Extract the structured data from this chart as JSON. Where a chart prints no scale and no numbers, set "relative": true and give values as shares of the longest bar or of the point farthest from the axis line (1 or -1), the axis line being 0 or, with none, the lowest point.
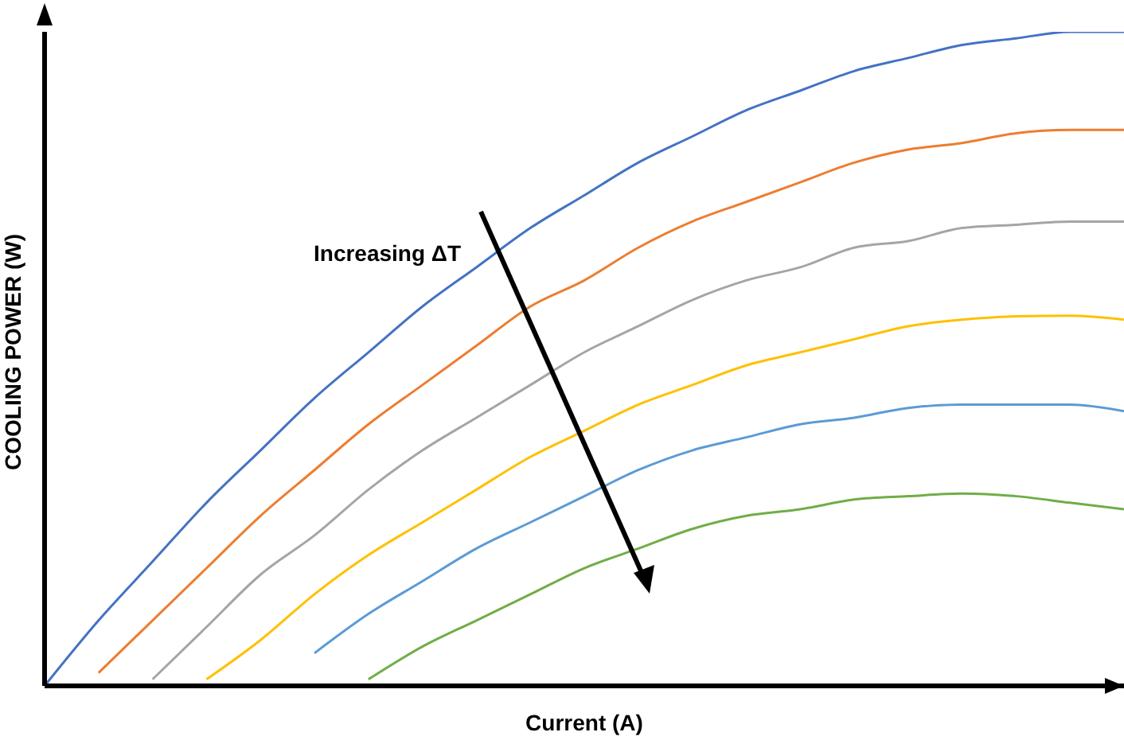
{
  "chart_data": {
    "type": "line",
    "relative": true,
    "xlabel": "Current (A)",
    "ylabel": "COOLING POWER (W)",
    "annotations": [
      "Increasing ΔT"
    ],
    "categories": [
      null,
      null,
      null,
      null,
      null,
      null,
      null,
      null,
      null,
      null,
      null,
      null,
      null,
      null,
      null,
      null,
      null,
      null,
      null,
      null,
      null
    ],
    "grid": false,
    "marker": "none",
    "line_style": "solid",
    "series": [
      {
        "color": "#4472c4",
        "values": [
          0,
          0.1,
          0.19,
          0.28,
          0.36,
          0.44,
          0.51,
          0.58,
          0.64,
          0.7,
          0.75,
          0.8,
          0.84,
          0.88,
          0.91,
          0.94,
          0.96,
          0.98,
          0.99,
          1,
          1
        ]
      },
      {
        "color": "#ed7d31",
        "values": [
          null,
          0.02,
          0.1,
          0.18,
          0.26,
          0.33,
          0.4,
          0.46,
          0.52,
          0.58,
          0.62,
          0.67,
          0.71,
          0.74,
          0.77,
          0.8,
          0.82,
          0.83,
          0.845,
          0.85,
          0.85
        ]
      },
      {
        "color": "#a5a5a5",
        "values": [
          null,
          null,
          0.01,
          0.09,
          0.17,
          0.23,
          0.3,
          0.36,
          0.41,
          0.46,
          0.51,
          0.55,
          0.59,
          0.62,
          0.64,
          0.67,
          0.68,
          0.7,
          0.705,
          0.71,
          0.71
        ]
      },
      {
        "color": "#ffc000",
        "values": [
          null,
          null,
          null,
          0.01,
          0.07,
          0.14,
          0.2,
          0.25,
          0.3,
          0.35,
          0.39,
          0.43,
          0.46,
          0.49,
          0.51,
          0.53,
          0.55,
          0.56,
          0.565,
          0.566,
          0.56
        ]
      },
      {
        "color": "#5b9bd5",
        "values": [
          null,
          null,
          null,
          null,
          null,
          0.05,
          0.11,
          0.16,
          0.21,
          0.25,
          0.29,
          0.33,
          0.36,
          0.38,
          0.4,
          0.41,
          0.425,
          0.43,
          0.43,
          0.43,
          0.42
        ]
      },
      {
        "color": "#70ad47",
        "values": [
          null,
          null,
          null,
          null,
          null,
          null,
          0.01,
          0.06,
          0.1,
          0.14,
          0.18,
          0.21,
          0.24,
          0.26,
          0.27,
          0.285,
          0.29,
          0.294,
          0.29,
          0.28,
          0.27
        ]
      }
    ]
  }
}
